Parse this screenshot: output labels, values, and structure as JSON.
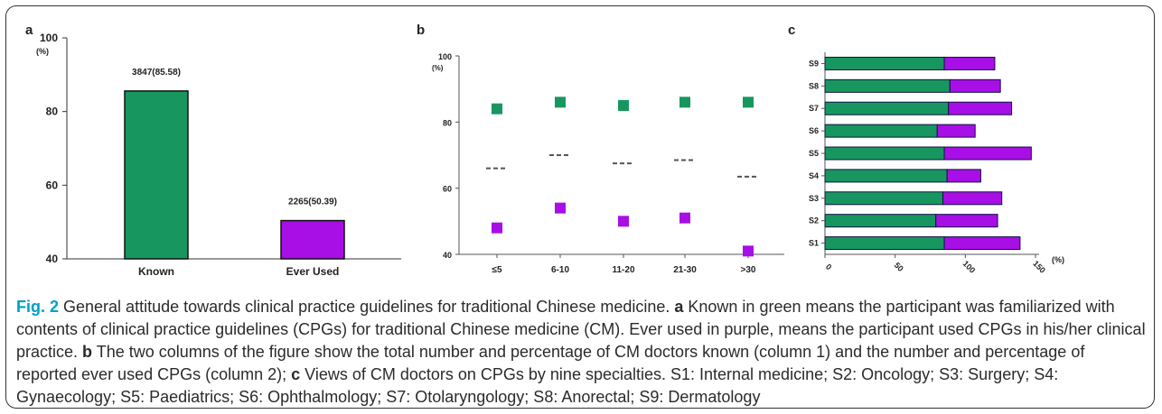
{
  "colors": {
    "known": "#17975f",
    "ever_used": "#a80ee6",
    "dash": "#555555",
    "fig_label": "#00a0c6"
  },
  "chart_data": [
    {
      "panel": "a",
      "type": "bar",
      "categories": [
        "Known",
        "Ever Used"
      ],
      "values": [
        85.58,
        50.39
      ],
      "data_labels": [
        "3847(85.58)",
        "2265(50.39)"
      ],
      "ylim": [
        40,
        100
      ],
      "yticks": [
        40,
        60,
        80,
        100
      ],
      "ylabel": "(%)",
      "xlabel": ""
    },
    {
      "panel": "b",
      "type": "scatter",
      "categories": [
        "≤5",
        "6-10",
        "11-20",
        "21-30",
        ">30"
      ],
      "series": [
        {
          "values": [
            84,
            86,
            85,
            86,
            86
          ]
        },
        {
          "values": [
            48,
            54,
            50,
            51,
            41
          ]
        },
        {
          "values": [
            66,
            70,
            67.5,
            68.5,
            63.5
          ]
        }
      ],
      "ylim": [
        40,
        100
      ],
      "yticks": [
        40,
        60,
        80,
        100
      ],
      "ylabel": "(%)",
      "xlabel": ""
    },
    {
      "panel": "c",
      "type": "bar",
      "orientation": "horizontal",
      "stacked": true,
      "categories": [
        "S1",
        "S2",
        "S3",
        "S4",
        "S5",
        "S6",
        "S7",
        "S8",
        "S9"
      ],
      "series": [
        {
          "values": [
            85,
            79,
            84,
            87,
            85,
            80,
            88,
            89,
            85
          ]
        },
        {
          "values": [
            54,
            44,
            42,
            24,
            62,
            27,
            45,
            36,
            36
          ]
        }
      ],
      "xlim": [
        0,
        150
      ],
      "xticks": [
        0,
        50,
        100,
        150
      ],
      "xlabel": "(%)",
      "ylabel": ""
    }
  ],
  "caption": {
    "fig_label": "Fig. 2",
    "title": " General attitude towards clinical practice guidelines for traditional Chinese medicine. ",
    "a_letter": "a",
    "a_text": " Known in green means the participant was familiarized with contents of clinical practice guidelines (CPGs) for traditional Chinese medicine (CM). Ever used in purple, means the participant used CPGs in his/her clinical practice. ",
    "b_letter": "b",
    "b_text": " The two columns of the figure show the total number and percentage of CM doctors known (column 1) and the number and percentage of reported ever used CPGs (column 2); ",
    "c_letter": "c",
    "c_text": " Views of CM doctors on CPGs by nine specialties. S1: Internal medicine; S2: Oncology; S3: Surgery; S4: Gynaecology; S5: Paediatrics; S6: Ophthalmology; S7: Otolaryngology; S8: Anorectal; S9: Dermatology"
  }
}
